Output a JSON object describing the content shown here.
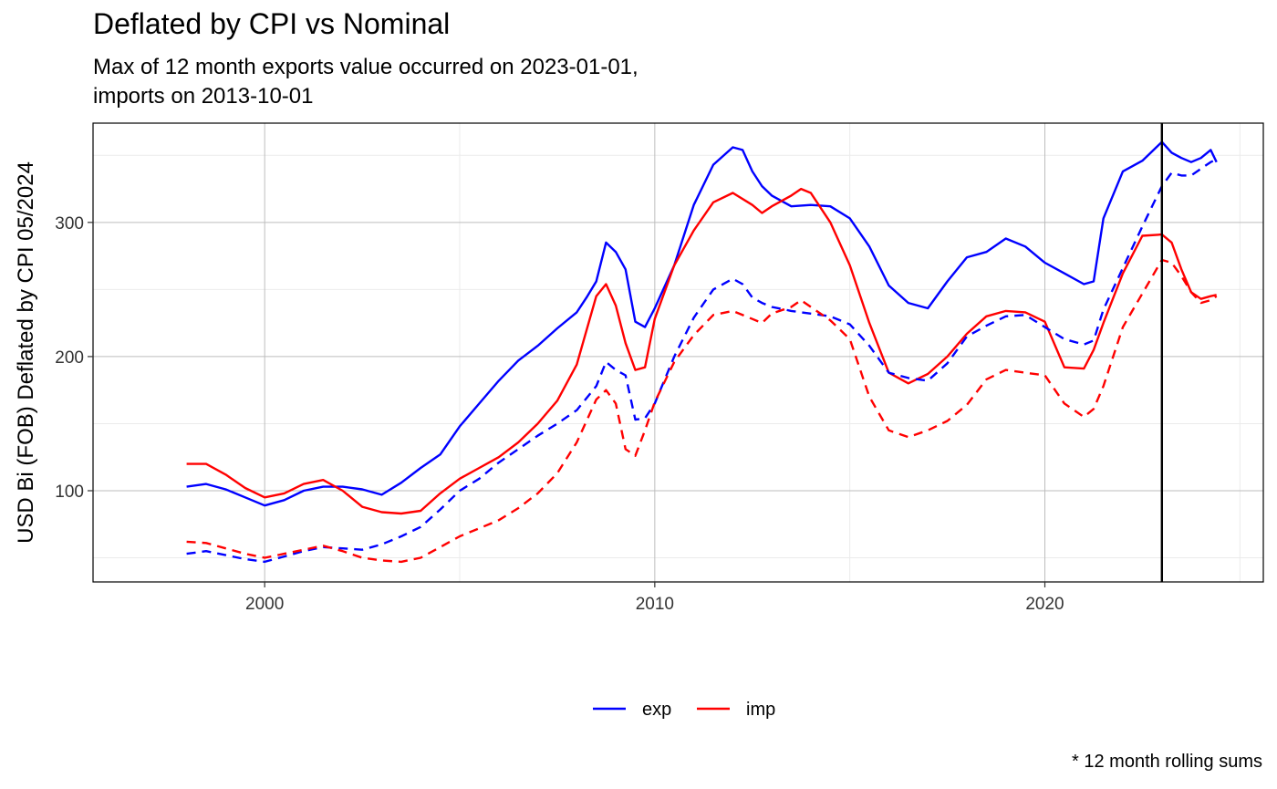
{
  "title": "Deflated by CPI vs Nominal",
  "subtitle_lines": [
    "Max of 12 month exports value occurred on 2023-01-01,",
    "imports on 2013-10-01"
  ],
  "caption": "* 12 month rolling sums",
  "chart_data": {
    "type": "line",
    "title": "Deflated by CPI vs Nominal",
    "ylabel": "USD Bi (FOB) Deflated by CPI 05/2024",
    "xlabel": "",
    "xlim": [
      1995.6,
      2025.6
    ],
    "ylim": [
      32,
      374
    ],
    "xticks": [
      2000,
      2010,
      2020
    ],
    "xtick_labels": [
      "2000",
      "2010",
      "2020"
    ],
    "yticks": [
      100,
      200,
      300
    ],
    "ytick_labels": [
      "100",
      "200",
      "300"
    ],
    "grid": true,
    "legend_position": "bottom",
    "vline_x": 2023.0,
    "legend": [
      {
        "label": "exp",
        "color": "#0000ff"
      },
      {
        "label": "imp",
        "color": "#ff0000"
      }
    ],
    "series": [
      {
        "name": "exp",
        "style": "solid",
        "color": "#0000ff",
        "x": [
          1998.0,
          1998.5,
          1999.0,
          1999.5,
          2000.0,
          2000.5,
          2001.0,
          2001.5,
          2002.0,
          2002.5,
          2003.0,
          2003.5,
          2004.0,
          2004.5,
          2005.0,
          2005.5,
          2006.0,
          2006.5,
          2007.0,
          2007.5,
          2008.0,
          2008.25,
          2008.5,
          2008.75,
          2009.0,
          2009.25,
          2009.5,
          2009.75,
          2010.0,
          2010.5,
          2011.0,
          2011.5,
          2012.0,
          2012.25,
          2012.5,
          2012.75,
          2013.0,
          2013.5,
          2014.0,
          2014.5,
          2015.0,
          2015.5,
          2016.0,
          2016.5,
          2017.0,
          2017.5,
          2018.0,
          2018.5,
          2019.0,
          2019.5,
          2020.0,
          2020.5,
          2021.0,
          2021.25,
          2021.5,
          2022.0,
          2022.5,
          2023.0,
          2023.25,
          2023.5,
          2023.75,
          2024.0,
          2024.25,
          2024.4
        ],
        "y": [
          103,
          105,
          101,
          95,
          89,
          93,
          100,
          103,
          103,
          101,
          97,
          106,
          117,
          127,
          148,
          165,
          182,
          197,
          208,
          221,
          233,
          244,
          256,
          285,
          278,
          265,
          226,
          222,
          236,
          268,
          313,
          343,
          356,
          354,
          338,
          327,
          320,
          312,
          313,
          312,
          303,
          282,
          253,
          240,
          236,
          256,
          274,
          278,
          288,
          282,
          270,
          262,
          254,
          256,
          303,
          338,
          346,
          360,
          352,
          348,
          345,
          348,
          354,
          345
        ]
      },
      {
        "name": "imp",
        "style": "solid",
        "color": "#ff0000",
        "x": [
          1998.0,
          1998.5,
          1999.0,
          1999.5,
          2000.0,
          2000.5,
          2001.0,
          2001.5,
          2002.0,
          2002.5,
          2003.0,
          2003.5,
          2004.0,
          2004.5,
          2005.0,
          2005.5,
          2006.0,
          2006.5,
          2007.0,
          2007.5,
          2008.0,
          2008.5,
          2008.75,
          2009.0,
          2009.25,
          2009.5,
          2009.75,
          2010.0,
          2010.5,
          2011.0,
          2011.5,
          2012.0,
          2012.5,
          2012.75,
          2013.0,
          2013.5,
          2013.75,
          2014.0,
          2014.5,
          2015.0,
          2015.5,
          2016.0,
          2016.5,
          2017.0,
          2017.5,
          2018.0,
          2018.5,
          2019.0,
          2019.5,
          2020.0,
          2020.5,
          2021.0,
          2021.25,
          2021.5,
          2022.0,
          2022.5,
          2023.0,
          2023.25,
          2023.5,
          2023.75,
          2024.0,
          2024.25,
          2024.4
        ],
        "y": [
          120,
          120,
          112,
          102,
          95,
          98,
          105,
          108,
          100,
          88,
          84,
          83,
          85,
          98,
          109,
          117,
          125,
          136,
          150,
          167,
          194,
          245,
          254,
          238,
          210,
          190,
          192,
          228,
          268,
          294,
          315,
          322,
          313,
          307,
          312,
          320,
          325,
          322,
          300,
          268,
          225,
          188,
          180,
          187,
          200,
          217,
          230,
          234,
          233,
          226,
          192,
          191,
          205,
          225,
          262,
          290,
          291,
          285,
          265,
          248,
          243,
          245,
          246
        ]
      },
      {
        "name": "exp",
        "style": "dashed",
        "color": "#0000ff",
        "x": [
          1998.0,
          1998.5,
          1999.0,
          1999.5,
          2000.0,
          2000.5,
          2001.0,
          2001.5,
          2002.0,
          2002.5,
          2003.0,
          2003.5,
          2004.0,
          2004.5,
          2005.0,
          2005.5,
          2006.0,
          2006.5,
          2007.0,
          2007.5,
          2008.0,
          2008.5,
          2008.75,
          2009.0,
          2009.25,
          2009.5,
          2009.75,
          2010.0,
          2010.5,
          2011.0,
          2011.5,
          2012.0,
          2012.25,
          2012.5,
          2012.75,
          2013.0,
          2013.5,
          2014.0,
          2014.5,
          2015.0,
          2015.5,
          2016.0,
          2016.5,
          2017.0,
          2017.5,
          2018.0,
          2018.5,
          2019.0,
          2019.5,
          2020.0,
          2020.5,
          2021.0,
          2021.25,
          2021.5,
          2022.0,
          2022.5,
          2023.0,
          2023.25,
          2023.5,
          2023.75,
          2024.0,
          2024.25,
          2024.4
        ],
        "y": [
          53,
          55,
          52,
          49,
          47,
          51,
          55,
          58,
          57,
          56,
          60,
          66,
          73,
          86,
          100,
          109,
          121,
          131,
          141,
          150,
          160,
          178,
          196,
          190,
          186,
          153,
          154,
          165,
          200,
          229,
          250,
          258,
          254,
          244,
          240,
          237,
          234,
          232,
          230,
          224,
          208,
          188,
          184,
          182,
          195,
          215,
          223,
          230,
          231,
          222,
          213,
          209,
          212,
          235,
          266,
          297,
          327,
          337,
          335,
          335,
          340,
          345,
          347
        ]
      },
      {
        "name": "imp",
        "style": "dashed",
        "color": "#ff0000",
        "x": [
          1998.0,
          1998.5,
          1999.0,
          1999.5,
          2000.0,
          2000.5,
          2001.0,
          2001.5,
          2002.0,
          2002.5,
          2003.0,
          2003.5,
          2004.0,
          2004.5,
          2005.0,
          2005.5,
          2006.0,
          2006.5,
          2007.0,
          2007.5,
          2008.0,
          2008.5,
          2008.75,
          2009.0,
          2009.25,
          2009.5,
          2009.75,
          2010.0,
          2010.5,
          2011.0,
          2011.5,
          2012.0,
          2012.5,
          2012.75,
          2013.0,
          2013.5,
          2013.75,
          2014.0,
          2014.5,
          2015.0,
          2015.5,
          2016.0,
          2016.5,
          2017.0,
          2017.5,
          2018.0,
          2018.5,
          2019.0,
          2019.5,
          2020.0,
          2020.5,
          2021.0,
          2021.25,
          2021.5,
          2022.0,
          2022.5,
          2023.0,
          2023.25,
          2023.5,
          2023.75,
          2024.0,
          2024.25,
          2024.4
        ],
        "y": [
          62,
          61,
          57,
          53,
          50,
          53,
          56,
          59,
          55,
          50,
          48,
          47,
          50,
          58,
          66,
          72,
          78,
          87,
          98,
          113,
          136,
          168,
          175,
          165,
          131,
          126,
          145,
          166,
          196,
          216,
          231,
          234,
          228,
          225,
          232,
          237,
          242,
          237,
          227,
          213,
          170,
          145,
          140,
          145,
          152,
          164,
          183,
          190,
          188,
          186,
          165,
          155,
          161,
          178,
          222,
          247,
          272,
          270,
          260,
          248,
          240,
          242,
          245
        ]
      }
    ]
  }
}
